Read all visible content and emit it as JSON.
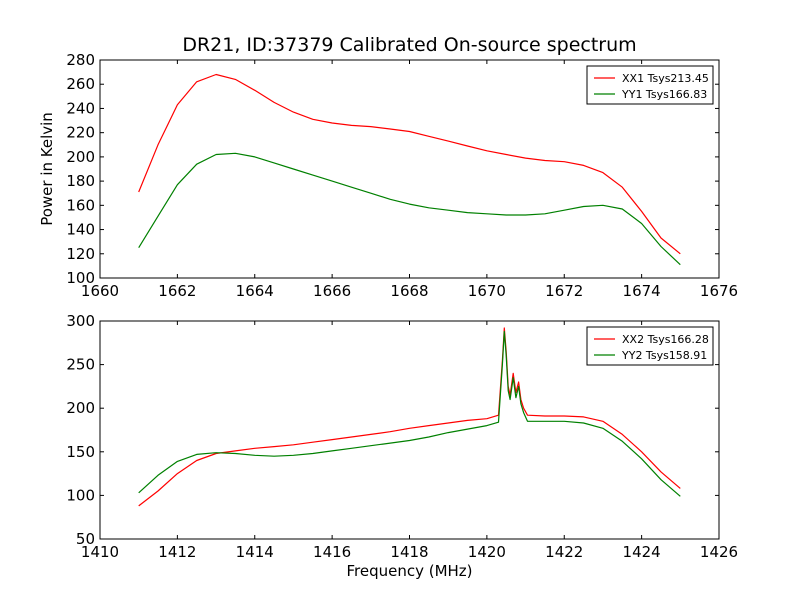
{
  "chart_data": [
    {
      "type": "line",
      "title": "DR21, ID:37379 Calibrated On-source spectrum",
      "xlabel": "",
      "ylabel": "Power in Kelvin",
      "xlim": [
        1660,
        1676
      ],
      "ylim": [
        100,
        280
      ],
      "xticks": [
        1660,
        1662,
        1664,
        1666,
        1668,
        1670,
        1672,
        1674,
        1676
      ],
      "yticks": [
        100,
        120,
        140,
        160,
        180,
        200,
        220,
        240,
        260,
        280
      ],
      "grid": false,
      "legend": "top-right",
      "series": [
        {
          "name": "XX1 Tsys213.45",
          "color": "#ff0000",
          "x": [
            1661.0,
            1661.5,
            1662.0,
            1662.5,
            1663.0,
            1663.5,
            1664.0,
            1664.5,
            1665.0,
            1665.5,
            1666.0,
            1666.5,
            1667.0,
            1667.5,
            1668.0,
            1668.5,
            1669.0,
            1669.5,
            1670.0,
            1670.5,
            1671.0,
            1671.5,
            1672.0,
            1672.5,
            1673.0,
            1673.5,
            1674.0,
            1674.5,
            1675.0
          ],
          "values": [
            171,
            210,
            243,
            262,
            268,
            264,
            255,
            245,
            237,
            231,
            228,
            226,
            225,
            223,
            221,
            217,
            213,
            209,
            205,
            202,
            199,
            197,
            196,
            193,
            187,
            175,
            155,
            133,
            120
          ]
        },
        {
          "name": "YY1 Tsys166.83",
          "color": "#008000",
          "x": [
            1661.0,
            1661.5,
            1662.0,
            1662.5,
            1663.0,
            1663.5,
            1664.0,
            1664.5,
            1665.0,
            1665.5,
            1666.0,
            1666.5,
            1667.0,
            1667.5,
            1668.0,
            1668.5,
            1669.0,
            1669.5,
            1670.0,
            1670.5,
            1671.0,
            1671.5,
            1672.0,
            1672.5,
            1673.0,
            1673.5,
            1674.0,
            1674.5,
            1675.0
          ],
          "values": [
            125,
            151,
            177,
            194,
            202,
            203,
            200,
            195,
            190,
            185,
            180,
            175,
            170,
            165,
            161,
            158,
            156,
            154,
            153,
            152,
            152,
            153,
            156,
            159,
            160,
            157,
            145,
            126,
            111
          ]
        }
      ]
    },
    {
      "type": "line",
      "title": "",
      "xlabel": "Frequency (MHz)",
      "ylabel": "",
      "xlim": [
        1410,
        1426
      ],
      "ylim": [
        50,
        300
      ],
      "xticks": [
        1410,
        1412,
        1414,
        1416,
        1418,
        1420,
        1422,
        1424,
        1426
      ],
      "yticks": [
        50,
        100,
        150,
        200,
        250,
        300
      ],
      "grid": false,
      "legend": "top-right",
      "series": [
        {
          "name": "XX2 Tsys166.28",
          "color": "#ff0000",
          "x": [
            1411.0,
            1411.5,
            1412.0,
            1412.5,
            1413.0,
            1413.5,
            1414.0,
            1414.5,
            1415.0,
            1415.5,
            1416.0,
            1416.5,
            1417.0,
            1417.5,
            1418.0,
            1418.5,
            1419.0,
            1419.5,
            1420.0,
            1420.3,
            1420.4,
            1420.45,
            1420.5,
            1420.55,
            1420.6,
            1420.68,
            1420.75,
            1420.82,
            1420.88,
            1420.95,
            1421.05,
            1421.5,
            1422.0,
            1422.5,
            1423.0,
            1423.5,
            1424.0,
            1424.5,
            1425.0
          ],
          "values": [
            88,
            105,
            125,
            140,
            148,
            151,
            154,
            156,
            158,
            161,
            164,
            167,
            170,
            173,
            177,
            180,
            183,
            186,
            188,
            192,
            255,
            292,
            265,
            225,
            215,
            240,
            218,
            230,
            210,
            200,
            192,
            191,
            191,
            190,
            185,
            170,
            150,
            127,
            108
          ]
        },
        {
          "name": "YY2 Tsys158.91",
          "color": "#008000",
          "x": [
            1411.0,
            1411.5,
            1412.0,
            1412.5,
            1413.0,
            1413.5,
            1414.0,
            1414.5,
            1415.0,
            1415.5,
            1416.0,
            1416.5,
            1417.0,
            1417.5,
            1418.0,
            1418.5,
            1419.0,
            1419.5,
            1420.0,
            1420.3,
            1420.4,
            1420.45,
            1420.5,
            1420.55,
            1420.6,
            1420.68,
            1420.75,
            1420.82,
            1420.88,
            1420.95,
            1421.05,
            1421.5,
            1422.0,
            1422.5,
            1423.0,
            1423.5,
            1424.0,
            1424.5,
            1425.0
          ],
          "values": [
            103,
            123,
            139,
            147,
            149,
            148,
            146,
            145,
            146,
            148,
            151,
            154,
            157,
            160,
            163,
            167,
            172,
            176,
            180,
            184,
            250,
            288,
            260,
            220,
            210,
            235,
            212,
            225,
            205,
            195,
            185,
            185,
            185,
            183,
            177,
            162,
            142,
            118,
            99
          ]
        }
      ]
    }
  ]
}
